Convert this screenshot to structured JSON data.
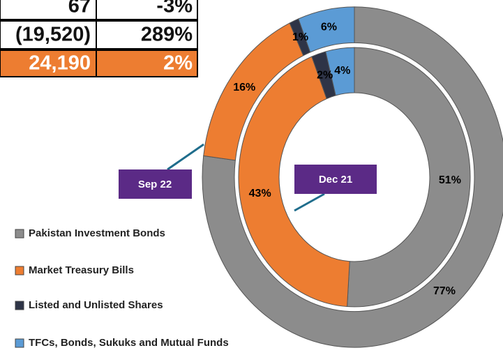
{
  "table": {
    "rows": [
      [
        "67",
        "-3%"
      ],
      [
        "(19,520)",
        "289%"
      ],
      [
        "24,190",
        "2%"
      ]
    ]
  },
  "chart_data": {
    "type": "donut",
    "categories": [
      "Pakistan Investment Bonds",
      "Market Treasury Bills",
      "Listed and Unlisted Shares",
      "TFCs, Bonds, Sukuks and Mutual Funds"
    ],
    "colors": [
      "#8c8c8c",
      "#ed7d31",
      "#2e3447",
      "#5b9bd5"
    ],
    "series": [
      {
        "name": "Sep 22",
        "values": [
          77,
          16,
          1,
          6
        ],
        "value_labels": [
          "77%",
          "16%",
          "1%",
          "6%"
        ]
      },
      {
        "name": "Dec 21",
        "values": [
          51,
          43,
          2,
          4
        ],
        "value_labels": [
          "51%",
          "43%",
          "2%",
          "4%"
        ]
      }
    ]
  }
}
